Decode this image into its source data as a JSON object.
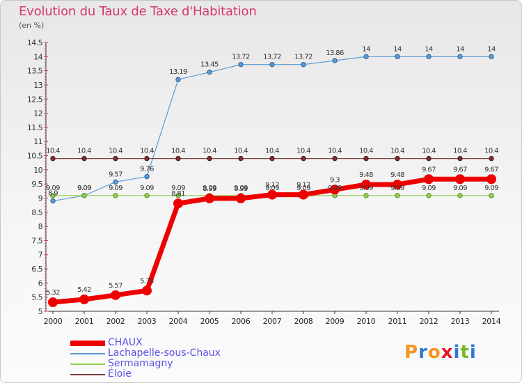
{
  "header": {
    "title": "Evolution du Taux de Taxe d'Habitation",
    "unit": "(en %)"
  },
  "logo": {
    "text": "Proxiti",
    "colors": [
      "#f7941d",
      "#2b7bd1",
      "#f7941d",
      "#e3162a",
      "#2b7bd1",
      "#7ab829",
      "#2b7bd1"
    ]
  },
  "chart_data": {
    "type": "line",
    "x": [
      "2000",
      "2001",
      "2002",
      "2003",
      "2004",
      "2005",
      "2006",
      "2007",
      "2008",
      "2009",
      "2010",
      "2011",
      "2012",
      "2013",
      "2014"
    ],
    "yticks": [
      "5",
      "5.5",
      "6",
      "6.5",
      "7",
      "7.5",
      "8",
      "8.5",
      "9",
      "9.5",
      "10",
      "10.5",
      "11",
      "11.5",
      "12",
      "12.5",
      "13",
      "13.5",
      "14",
      "14.5"
    ],
    "ylim": [
      5,
      14.5
    ],
    "grid": false,
    "legend_position": "bottom-left",
    "series": [
      {
        "name": "CHAUX",
        "color": "#ee0000",
        "values": [
          5.32,
          5.42,
          5.57,
          5.73,
          8.81,
          8.99,
          8.99,
          9.12,
          9.12,
          9.3,
          9.48,
          9.48,
          9.67,
          9.67,
          9.67
        ],
        "labels": [
          "5.32",
          "5.42",
          "5.57",
          "5.73",
          "8.81",
          "8.99",
          "8.99",
          "9.12",
          "9.12",
          "9.3",
          "9.48",
          "9.48",
          "9.67",
          "9.67",
          "9.67"
        ]
      },
      {
        "name": "Lachapelle-sous-Chaux",
        "color": "#5b9bd5",
        "values": [
          8.9,
          9.09,
          9.57,
          9.76,
          13.19,
          13.45,
          13.72,
          13.72,
          13.72,
          13.86,
          14,
          14,
          14,
          14,
          14
        ],
        "labels": [
          "8.9",
          "9.09",
          "9.57",
          "9.76",
          "13.19",
          "13.45",
          "13.72",
          "13.72",
          "13.72",
          "13.86",
          "14",
          "14",
          "14",
          "14",
          "14"
        ]
      },
      {
        "name": "Sermamagny",
        "color": "#92d050",
        "values": [
          9.09,
          9.09,
          9.09,
          9.09,
          9.09,
          9.09,
          9.09,
          9.09,
          9.09,
          9.09,
          9.09,
          9.09,
          9.09,
          9.09,
          9.09
        ],
        "labels": [
          "9.09",
          "9.09",
          "9.09",
          "9.09",
          "9.09",
          "9.09",
          "9.09",
          "9.09",
          "9.09",
          "9.09",
          "9.09",
          "9.09",
          "9.09",
          "9.09",
          "9.09"
        ]
      },
      {
        "name": "Éloie",
        "color": "#7f3f3f",
        "values": [
          10.4,
          10.4,
          10.4,
          10.4,
          10.4,
          10.4,
          10.4,
          10.4,
          10.4,
          10.4,
          10.4,
          10.4,
          10.4,
          10.4,
          10.4
        ],
        "labels": [
          "10.4",
          "10.4",
          "10.4",
          "10.4",
          "10.4",
          "10.4",
          "10.4",
          "10.4",
          "10.4",
          "10.4",
          "10.4",
          "10.4",
          "10.4",
          "10.4",
          "10.4"
        ]
      }
    ]
  }
}
